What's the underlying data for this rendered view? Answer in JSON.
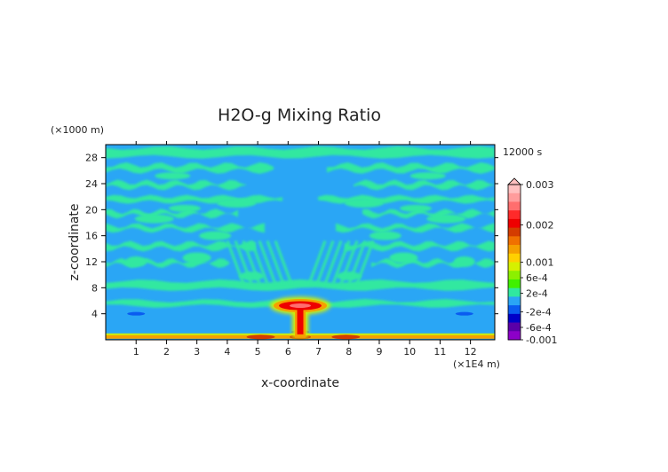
{
  "chart_data": {
    "type": "heatmap",
    "title": "H2O-g Mixing Ratio",
    "xlabel": "x-coordinate",
    "ylabel": "z-coordinate",
    "x_unit": "(×1E4 m)",
    "y_unit": "(×1000 m)",
    "time_label": "12000 s",
    "xlim": [
      0,
      12.8
    ],
    "ylim": [
      0,
      30
    ],
    "x_ticks": [
      "1",
      "2",
      "3",
      "4",
      "5",
      "6",
      "7",
      "8",
      "9",
      "10",
      "11",
      "12"
    ],
    "y_ticks": [
      "4",
      "8",
      "12",
      "16",
      "20",
      "24",
      "28"
    ],
    "colorbar_labels": [
      "0.003",
      "0.002",
      "0.001",
      "6e-4",
      "2e-4",
      "-2e-4",
      "-6e-4",
      "-0.001"
    ],
    "colorbar_colors": [
      "#ffc0c0",
      "#ff9c9c",
      "#ff6e6e",
      "#ff2a2a",
      "#ee0000",
      "#d43c00",
      "#f07000",
      "#f5a000",
      "#ffd000",
      "#d6f000",
      "#8cf000",
      "#40f000",
      "#30e8a0",
      "#2aa6f5",
      "#0a5cf0",
      "#0000c8",
      "#5a00a8",
      "#8c00c8"
    ],
    "colorbar_ticks": [
      0.003,
      0.002,
      0.001,
      0.0006,
      0.0002,
      -0.0002,
      -0.0006,
      -0.001
    ],
    "field_background_color": "#2aa6f5",
    "features": [
      {
        "kind": "plume",
        "x": 6.4,
        "z_bottom": 0.3,
        "z_top": 6.2,
        "max_value": 0.002
      },
      {
        "kind": "surface_layer",
        "z": 0.3,
        "value": 0.0006
      }
    ]
  }
}
